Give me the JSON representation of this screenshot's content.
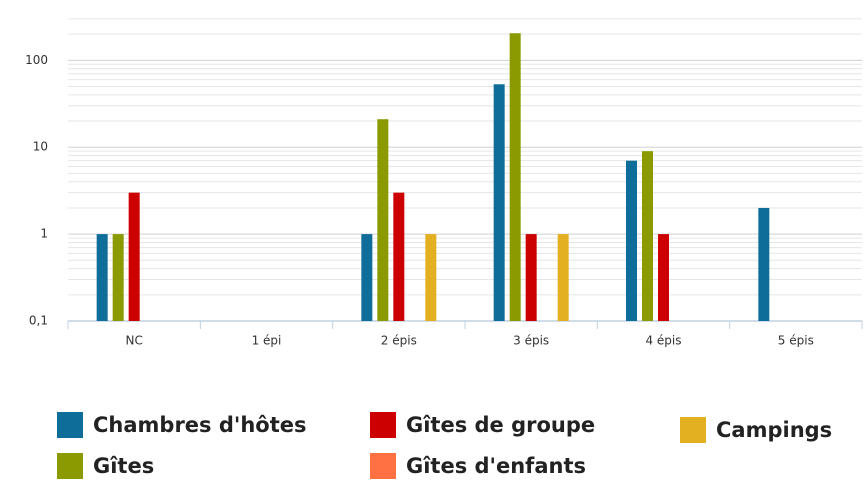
{
  "chart_data": {
    "type": "bar",
    "categories": [
      "NC",
      "1 épi",
      "2 épis",
      "3 épis",
      "4 épis",
      "5 épis"
    ],
    "series": [
      {
        "name": "Chambres d'hôtes",
        "color": "#0f6e99",
        "values": [
          1,
          null,
          1,
          53,
          7,
          2
        ]
      },
      {
        "name": "Gîtes",
        "color": "#8a9a00",
        "values": [
          1,
          null,
          21,
          205,
          9,
          null
        ]
      },
      {
        "name": "Gîtes de groupe",
        "color": "#cc0000",
        "values": [
          3,
          null,
          3,
          1,
          1,
          null
        ]
      },
      {
        "name": "Gîtes d'enfants",
        "color": "#ff7043",
        "values": [
          null,
          null,
          null,
          null,
          null,
          null
        ]
      },
      {
        "name": "Campings",
        "color": "#e2b020",
        "values": [
          null,
          null,
          1,
          1,
          null,
          null
        ]
      }
    ],
    "ylim": [
      0.1,
      400
    ],
    "yticks": [
      {
        "value": 0.1,
        "label": "0,1"
      },
      1,
      10,
      100
    ],
    "log_scale": true,
    "grid": true
  }
}
